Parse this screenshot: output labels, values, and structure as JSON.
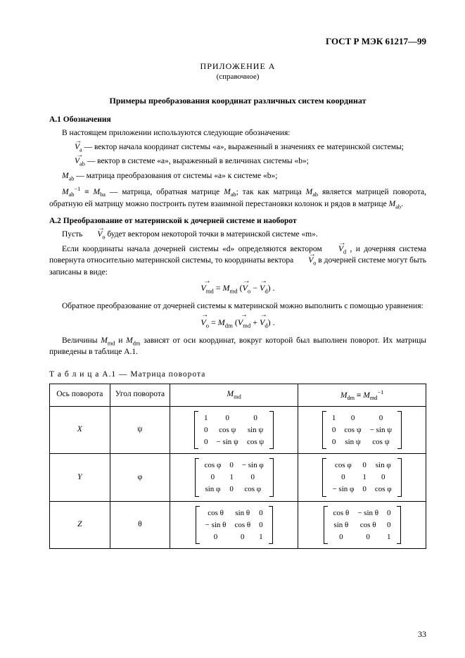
{
  "doc_id": "ГОСТ Р МЭК 61217—99",
  "appendix_label": "ПРИЛОЖЕНИЕ А",
  "appendix_note": "(справочное)",
  "title": "Примеры преобразования координат различных систем координат",
  "a1": {
    "heading": "А.1 Обозначения",
    "intro": "В настоящем приложении используются следующие обозначения:",
    "l1": " — вектор начала координат системы «a», выраженный в значениях ее материнской системы;",
    "l2": " — вектор в системе «a», выраженный в величинах системы «b»;",
    "l3": " — матрица преобразования от системы «a» к системе «b»;",
    "l4a": " — матрица, обратная матрице ",
    "l4b": "; так как матрица ",
    "l4c": " является матрицей поворота, обратную ей матрицу можно построить путем взаимной перестановки колонок и рядов в матрице "
  },
  "a2": {
    "heading": "А.2 Преобразование от материнской к дочерней системе и наоборот",
    "p1a": "Пусть ",
    "p1b": " будет вектором некоторой точки в материнской системе «m».",
    "p2a": "Если координаты начала дочерней системы «d» определяются вектором ",
    "p2b": " , и дочерняя система повернута относительно материнской системы, то координаты вектора ",
    "p2c": " в дочерней системе могут быть записаны в виде:",
    "p3": "Обратное преобразование от дочерней системы к материнской можно выполнить с помощью уравнения:",
    "p4a": "Величины ",
    "p4b": " и ",
    "p4c": " зависят от оси координат, вокруг которой был выполнен поворот. Их матрицы приведены в таблице А.1."
  },
  "table": {
    "caption": "Т а б л и ц а  А.1 — Матрица поворота",
    "h1": "Ось поворота",
    "h2": "Угол поворота",
    "axes": [
      "X",
      "Y",
      "Z"
    ],
    "angles": [
      "ψ",
      "φ",
      "θ"
    ],
    "Mmd": [
      [
        [
          "1",
          "0",
          "0"
        ],
        [
          "0",
          "cos ψ",
          "sin ψ"
        ],
        [
          "0",
          "− sin ψ",
          "cos ψ"
        ]
      ],
      [
        [
          "cos φ",
          "0",
          "− sin φ"
        ],
        [
          "0",
          "1",
          "0"
        ],
        [
          "sin φ",
          "0",
          "cos φ"
        ]
      ],
      [
        [
          "cos θ",
          "sin θ",
          "0"
        ],
        [
          "− sin θ",
          "cos θ",
          "0"
        ],
        [
          "0",
          "0",
          "1"
        ]
      ]
    ],
    "Mdm": [
      [
        [
          "1",
          "0",
          "0"
        ],
        [
          "0",
          "cos ψ",
          "− sin ψ"
        ],
        [
          "0",
          "sin ψ",
          "cos ψ"
        ]
      ],
      [
        [
          "cos φ",
          "0",
          "sin φ"
        ],
        [
          "0",
          "1",
          "0"
        ],
        [
          "− sin φ",
          "0",
          "cos φ"
        ]
      ],
      [
        [
          "cos θ",
          "− sin θ",
          "0"
        ],
        [
          "sin θ",
          "cos θ",
          "0"
        ],
        [
          "0",
          "0",
          "1"
        ]
      ]
    ]
  },
  "page_number": "33"
}
